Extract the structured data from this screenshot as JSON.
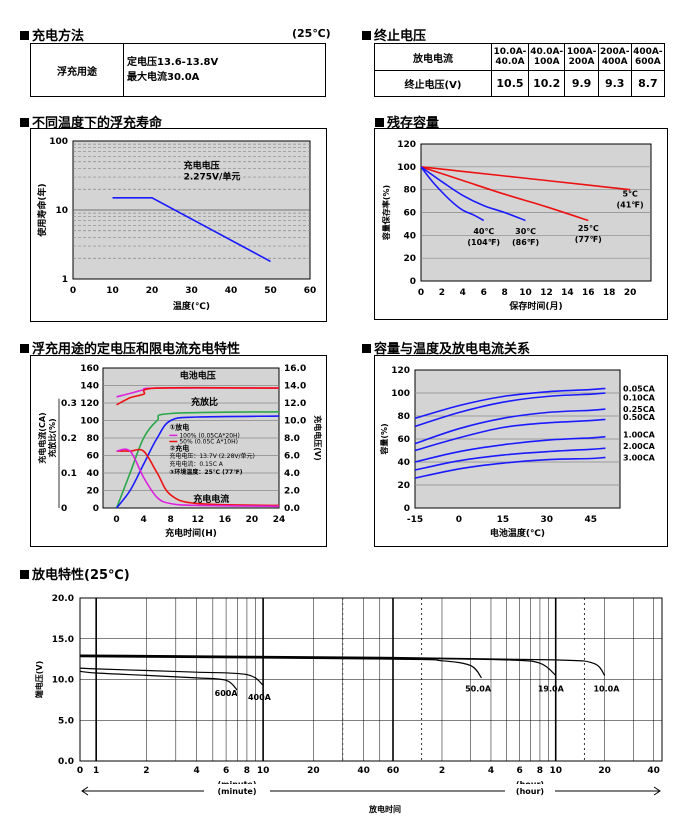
{
  "charging": {
    "title": "充电方法",
    "temp": "(25℃)",
    "method": "浮充用途",
    "voltage": "定电压13.6-13.8V",
    "current": "最大电流30.0A"
  },
  "cutoff": {
    "title": "终止电压",
    "current_label": "放电电流",
    "voltage_label": "终止电压(V)",
    "ranges": [
      "10.0A-40.0A",
      "40.0A-100A",
      "100A-200A",
      "200A-400A",
      "400A-600A"
    ],
    "voltages": [
      "10.5",
      "10.2",
      "9.9",
      "9.3",
      "8.7"
    ]
  },
  "section_titles": {
    "float_life": "不同温度下的浮充寿命",
    "self_discharge": "残存容量",
    "charge_char": "浮充用途的定电压和限电流充电特性",
    "capacity_temp": "容量与温度及放电电流关系",
    "discharge": "放电特性(25℃)"
  },
  "chart_data": [
    {
      "id": "float_life",
      "type": "line",
      "xlabel": "温度(℃)",
      "ylabel": "使用寿命(年)",
      "xlim": [
        0,
        60
      ],
      "ylim": [
        1,
        100
      ],
      "y_scale": "log",
      "x_ticks": [
        "0",
        "10",
        "20",
        "30",
        "40",
        "50",
        "60"
      ],
      "y_ticks": [
        "1",
        "10",
        "100"
      ],
      "annotation": [
        "充电电压",
        "2.275V/单元"
      ],
      "series": [
        {
          "color": "#1a1aff",
          "points": [
            [
              10,
              15
            ],
            [
              20,
              15
            ],
            [
              50,
              1.8
            ]
          ]
        }
      ]
    },
    {
      "id": "self_discharge",
      "type": "line",
      "xlabel": "保存时间(月)",
      "ylabel": "容量保存率(%)",
      "xlim": [
        0,
        22
      ],
      "ylim": [
        0,
        120
      ],
      "x_ticks": [
        "0",
        "2",
        "4",
        "6",
        "8",
        "10",
        "12",
        "14",
        "16",
        "18",
        "20"
      ],
      "y_ticks": [
        "0",
        "20",
        "40",
        "60",
        "80",
        "100",
        "120"
      ],
      "series": [
        {
          "name": "5℃",
          "sub": "(41℉)",
          "color": "#ee1111",
          "points": [
            [
              0,
              100
            ],
            [
              4,
              96
            ],
            [
              8,
              92
            ],
            [
              12,
              88
            ],
            [
              16,
              84
            ],
            [
              20,
              80
            ]
          ]
        },
        {
          "name": "25℃",
          "sub": "(77℉)",
          "color": "#ee1111",
          "points": [
            [
              0,
              100
            ],
            [
              4,
              88
            ],
            [
              8,
              76
            ],
            [
              12,
              65
            ],
            [
              16,
              53
            ]
          ]
        },
        {
          "name": "30℃",
          "sub": "(86℉)",
          "color": "#1a1aff",
          "points": [
            [
              0,
              100
            ],
            [
              2,
              87
            ],
            [
              4,
              75
            ],
            [
              6,
              66
            ],
            [
              8,
              60
            ],
            [
              10,
              53
            ]
          ]
        },
        {
          "name": "40℃",
          "sub": "(104℉)",
          "color": "#1a1aff",
          "points": [
            [
              0,
              100
            ],
            [
              1,
              88
            ],
            [
              2,
              78
            ],
            [
              3,
              69
            ],
            [
              4,
              62
            ],
            [
              5,
              58
            ],
            [
              6,
              53
            ]
          ]
        }
      ]
    },
    {
      "id": "charge_char",
      "type": "line",
      "xlabel": "充电时间(H)",
      "ylabel_left_outer": "充电电流(CA)",
      "ylabel_left_inner": "充放比(%)",
      "ylabel_right": "充电电压(V)",
      "xlim": [
        -2,
        24
      ],
      "ylim": [
        0,
        160
      ],
      "x_ticks": [
        "0",
        "4",
        "8",
        "12",
        "16",
        "20",
        "24"
      ],
      "y_ticks": [
        "0",
        "20",
        "40",
        "60",
        "80",
        "100",
        "120",
        "140",
        "160"
      ],
      "y2_ticks": [
        "0.0",
        "2.0",
        "4.0",
        "6.0",
        "8.0",
        "10.0",
        "12.0",
        "14.0",
        "16.0"
      ],
      "ca_ticks": [
        "0",
        "0.1",
        "0.2",
        "0.3"
      ],
      "labels": {
        "voltage": "电池电压",
        "ratio": "充放比",
        "current": "充电电流"
      },
      "legend": {
        "discharge_head": "①放电",
        "line1": "100% (0.05CA*20H)",
        "line2": "50% (0.05C A*10H)",
        "charge_head": "②充电",
        "charge_v": "充电电压：13.7V (2.28V/单元)",
        "charge_i": "充电电流：0.15C A",
        "ambient": "③环境温度：25℃ (77℉)"
      },
      "series": [
        {
          "name": "电池电压-100%",
          "color": "#dd22dd",
          "points": [
            [
              0,
              127
            ],
            [
              2,
              131
            ],
            [
              4,
              135
            ],
            [
              6,
              137
            ],
            [
              24,
              137
            ]
          ]
        },
        {
          "name": "电池电压-50%",
          "color": "#ee1111",
          "points": [
            [
              0,
              118
            ],
            [
              2,
              126
            ],
            [
              4,
              130
            ],
            [
              6,
              137
            ],
            [
              24,
              137
            ]
          ]
        },
        {
          "name": "充放比-100%",
          "color": "#2ba84a",
          "points": [
            [
              0,
              0
            ],
            [
              2,
              40
            ],
            [
              4,
              80
            ],
            [
              6,
              100
            ],
            [
              8,
              108
            ],
            [
              24,
              110
            ]
          ]
        },
        {
          "name": "充放比-50%",
          "color": "#1a1aff",
          "points": [
            [
              0,
              0
            ],
            [
              2,
              20
            ],
            [
              4,
              50
            ],
            [
              6,
              80
            ],
            [
              8,
              100
            ],
            [
              12,
              104
            ],
            [
              24,
              105
            ]
          ]
        },
        {
          "name": "充电电流-100%",
          "color": "#ee1111",
          "points": [
            [
              0,
              65
            ],
            [
              2,
              65
            ],
            [
              4,
              65
            ],
            [
              6,
              40
            ],
            [
              8,
              15
            ],
            [
              12,
              5
            ],
            [
              24,
              3
            ]
          ]
        },
        {
          "name": "充电电流-50%",
          "color": "#dd22dd",
          "points": [
            [
              0,
              65
            ],
            [
              2,
              65
            ],
            [
              4,
              35
            ],
            [
              6,
              12
            ],
            [
              8,
              5
            ],
            [
              12,
              3
            ],
            [
              24,
              2
            ]
          ]
        }
      ]
    },
    {
      "id": "capacity_temp",
      "type": "line",
      "xlabel": "电池温度(℃)",
      "ylabel": "容量(%)",
      "xlim": [
        -15,
        55
      ],
      "ylim": [
        0,
        120
      ],
      "x_ticks": [
        "-15",
        "0",
        "15",
        "30",
        "45"
      ],
      "y_ticks": [
        "0",
        "20",
        "40",
        "60",
        "80",
        "100",
        "120"
      ],
      "series": [
        {
          "name": "0.05CA",
          "color": "#1a1aff",
          "points": [
            [
              -15,
              78
            ],
            [
              0,
              89
            ],
            [
              15,
              97
            ],
            [
              30,
              101
            ],
            [
              45,
              103
            ],
            [
              50,
              104
            ]
          ]
        },
        {
          "name": "0.10CA",
          "color": "#1a1aff",
          "points": [
            [
              -15,
              71
            ],
            [
              0,
              83
            ],
            [
              15,
              92
            ],
            [
              30,
              97
            ],
            [
              45,
              99
            ],
            [
              50,
              100
            ]
          ]
        },
        {
          "name": "0.25CA",
          "color": "#1a1aff",
          "points": [
            [
              -15,
              56
            ],
            [
              0,
              69
            ],
            [
              15,
              78
            ],
            [
              30,
              83
            ],
            [
              45,
              85
            ],
            [
              50,
              86
            ]
          ]
        },
        {
          "name": "0.50CA",
          "color": "#1a1aff",
          "points": [
            [
              -15,
              50
            ],
            [
              0,
              61
            ],
            [
              15,
              70
            ],
            [
              30,
              74
            ],
            [
              45,
              76
            ],
            [
              50,
              77
            ]
          ]
        },
        {
          "name": "1.00CA",
          "color": "#1a1aff",
          "points": [
            [
              -15,
              40
            ],
            [
              0,
              49
            ],
            [
              15,
              55
            ],
            [
              30,
              59
            ],
            [
              45,
              61
            ],
            [
              50,
              62
            ]
          ]
        },
        {
          "name": "2.00CA",
          "color": "#1a1aff",
          "points": [
            [
              -15,
              33
            ],
            [
              0,
              41
            ],
            [
              15,
              46
            ],
            [
              30,
              49
            ],
            [
              45,
              51
            ],
            [
              50,
              52
            ]
          ]
        },
        {
          "name": "3.00CA",
          "color": "#1a1aff",
          "points": [
            [
              -15,
              26
            ],
            [
              0,
              34
            ],
            [
              15,
              39
            ],
            [
              30,
              42
            ],
            [
              45,
              43
            ],
            [
              50,
              44
            ]
          ]
        }
      ]
    },
    {
      "id": "discharge",
      "type": "line",
      "xlabel": "放电时间",
      "ylabel": "端电压(V)",
      "ylim": [
        0,
        20
      ],
      "y_ticks": [
        "0.0",
        "5.0",
        "10.0",
        "15.0",
        "20.0"
      ],
      "x_ticks_min": [
        "0",
        "1",
        "2",
        "4",
        "6",
        "8",
        "10",
        "20",
        "40",
        "60"
      ],
      "x_ticks_hr": [
        "2",
        "4",
        "6",
        "8",
        "10",
        "20",
        "40"
      ],
      "unit_min": "(minute)",
      "unit_hr": "(hour)",
      "series": [
        {
          "name": "600A",
          "color": "#000000",
          "minutes": [
            0.01,
            1,
            2,
            4,
            6,
            7
          ],
          "volts": [
            11.0,
            10.8,
            10.5,
            10.2,
            9.9,
            8.7
          ]
        },
        {
          "name": "400A",
          "color": "#000000",
          "minutes": [
            0.01,
            1,
            2,
            4,
            8,
            10
          ],
          "volts": [
            11.4,
            11.3,
            11.1,
            10.9,
            10.6,
            9.3
          ]
        },
        {
          "name": "50.0A",
          "color": "#000000",
          "minutes": [
            0.01,
            60,
            120,
            180,
            210
          ],
          "volts": [
            12.8,
            12.5,
            12.3,
            11.7,
            10.2
          ]
        },
        {
          "name": "19.0A",
          "color": "#000000",
          "minutes": [
            0.01,
            60,
            300,
            480,
            600
          ],
          "volts": [
            12.9,
            12.6,
            12.4,
            12.0,
            10.5
          ]
        },
        {
          "name": "10.0A",
          "color": "#000000",
          "minutes": [
            0.01,
            60,
            600,
            1020,
            1200
          ],
          "volts": [
            13.0,
            12.7,
            12.4,
            12.0,
            10.5
          ]
        }
      ]
    }
  ]
}
